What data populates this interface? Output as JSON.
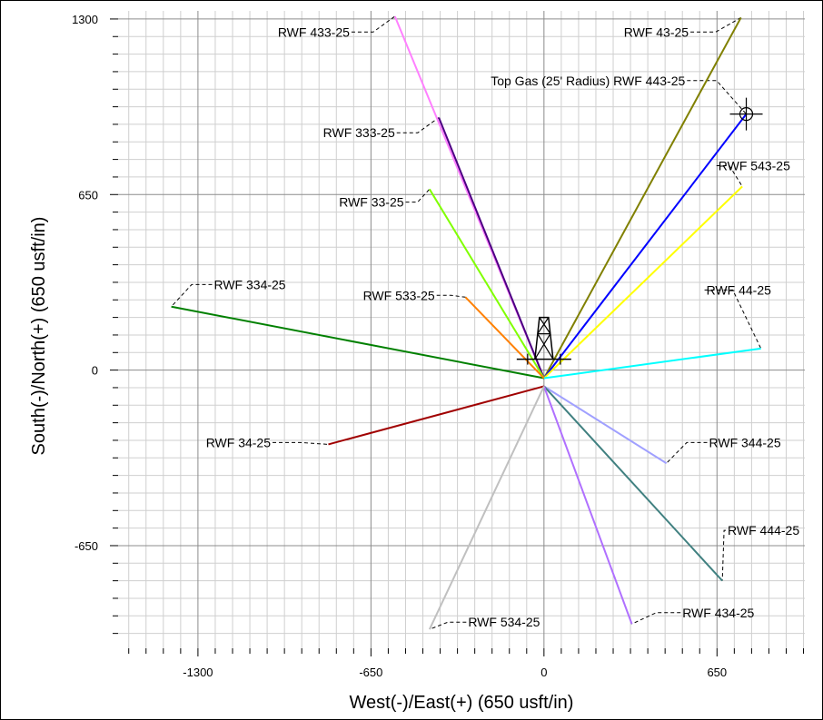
{
  "chart_data": {
    "type": "line",
    "title": "",
    "xlabel": "West(-)/East(+) (650 usft/in)",
    "ylabel": "South(-)/North(+) (650 usft/in)",
    "xlim": [
      -1600,
      980
    ],
    "ylim": [
      -1030,
      1330
    ],
    "x_ticks": [
      -1300,
      -650,
      0,
      650
    ],
    "y_ticks": [
      1300,
      650,
      0,
      -650
    ],
    "grid": true,
    "surface_location": [
      0,
      0
    ],
    "target": {
      "name": "Top Gas (25' Radius) RWF 443-25",
      "x": 760,
      "y": 948
    },
    "series": [
      {
        "name": "RWF 433-25",
        "color": "#ff80ff",
        "start": [
          0,
          -30
        ],
        "end": [
          -560,
          1310
        ]
      },
      {
        "name": "RWF 43-25",
        "color": "#808000",
        "start": [
          0,
          -30
        ],
        "end": [
          740,
          1305
        ]
      },
      {
        "name": "Top Gas (25' Radius) RWF 443-25",
        "color": "#0000ff",
        "start": [
          0,
          -30
        ],
        "end": [
          760,
          948
        ]
      },
      {
        "name": "RWF 333-25",
        "color": "#4b0082",
        "start": [
          0,
          -30
        ],
        "end": [
          -395,
          935
        ]
      },
      {
        "name": "RWF 543-25",
        "color": "#ffff00",
        "start": [
          0,
          -30
        ],
        "end": [
          745,
          680
        ]
      },
      {
        "name": "RWF 33-25",
        "color": "#80ff00",
        "start": [
          0,
          -30
        ],
        "end": [
          -430,
          670
        ]
      },
      {
        "name": "RWF 44-25",
        "color": "#00ffff",
        "start": [
          0,
          -30
        ],
        "end": [
          815,
          80
        ]
      },
      {
        "name": "RWF 334-25",
        "color": "#008000",
        "start": [
          0,
          -30
        ],
        "end": [
          -1400,
          235
        ]
      },
      {
        "name": "RWF 533-25",
        "color": "#ff8000",
        "start": [
          0,
          -30
        ],
        "end": [
          -295,
          270
        ]
      },
      {
        "name": "RWF 34-25",
        "color": "#a00000",
        "start": [
          0,
          -60
        ],
        "end": [
          -810,
          -275
        ]
      },
      {
        "name": "RWF 344-25",
        "color": "#a0a0ff",
        "start": [
          0,
          -60
        ],
        "end": [
          460,
          -345
        ]
      },
      {
        "name": "RWF 444-25",
        "color": "#408080",
        "start": [
          0,
          -60
        ],
        "end": [
          670,
          -780
        ]
      },
      {
        "name": "RWF 434-25",
        "color": "#b070ff",
        "start": [
          0,
          -60
        ],
        "end": [
          330,
          -940
        ]
      },
      {
        "name": "RWF 534-25",
        "color": "#c0c0c0",
        "start": [
          0,
          -60
        ],
        "end": [
          -430,
          -960
        ]
      }
    ],
    "labels": [
      {
        "text": "RWF 433-25",
        "anchor": [
          -560,
          1310
        ],
        "lx": -1000,
        "ly": 1235,
        "side": "right"
      },
      {
        "text": "RWF 43-25",
        "anchor": [
          740,
          1305
        ],
        "lx": 300,
        "ly": 1235,
        "side": "right"
      },
      {
        "text": "Top Gas (25' Radius) RWF 443-25",
        "anchor": [
          760,
          948
        ],
        "lx": -200,
        "ly": 1055,
        "side": "right"
      },
      {
        "text": "RWF 333-25",
        "anchor": [
          -395,
          935
        ],
        "lx": -830,
        "ly": 862,
        "side": "right"
      },
      {
        "text": "RWF 543-25",
        "anchor": [
          745,
          680
        ],
        "lx": 655,
        "ly": 740,
        "side": "left"
      },
      {
        "text": "RWF 33-25",
        "anchor": [
          -430,
          670
        ],
        "lx": -770,
        "ly": 605,
        "side": "right"
      },
      {
        "text": "RWF 44-25",
        "anchor": [
          815,
          80
        ],
        "lx": 610,
        "ly": 280,
        "side": "left"
      },
      {
        "text": "RWF 334-25",
        "anchor": [
          -1400,
          235
        ],
        "lx": -1240,
        "ly": 300,
        "side": "left"
      },
      {
        "text": "RWF 533-25",
        "anchor": [
          -295,
          270
        ],
        "lx": -680,
        "ly": 260,
        "side": "right"
      },
      {
        "text": "RWF 34-25",
        "anchor": [
          -810,
          -275
        ],
        "lx": -1270,
        "ly": -285,
        "side": "right"
      },
      {
        "text": "RWF 344-25",
        "anchor": [
          460,
          -345
        ],
        "lx": 620,
        "ly": -285,
        "side": "left"
      },
      {
        "text": "RWF 444-25",
        "anchor": [
          670,
          -780
        ],
        "lx": 690,
        "ly": -610,
        "side": "left"
      },
      {
        "text": "RWF 434-25",
        "anchor": [
          330,
          -940
        ],
        "lx": 520,
        "ly": -915,
        "side": "left"
      },
      {
        "text": "RWF 534-25",
        "anchor": [
          -430,
          -960
        ],
        "lx": -285,
        "ly": -950,
        "side": "left"
      }
    ]
  }
}
